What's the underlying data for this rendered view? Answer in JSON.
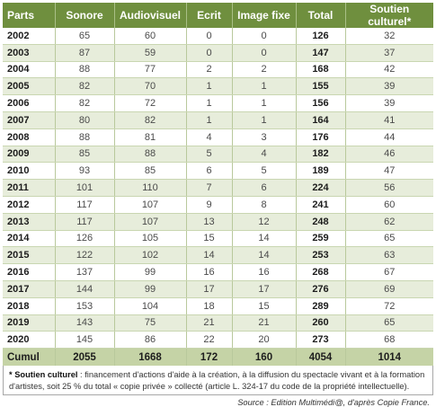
{
  "header": {
    "col_parts": "Parts",
    "col_sonore": "Sonore",
    "col_audiovisuel": "Audiovisuel",
    "col_ecrit": "Ecrit",
    "col_image": "Image fixe",
    "col_total": "Total",
    "col_soutien": "Soutien culturel*"
  },
  "rows": [
    {
      "year": "2002",
      "sonore": "65",
      "audiovisuel": "60",
      "ecrit": "0",
      "image": "0",
      "total": "126",
      "soutien": "32"
    },
    {
      "year": "2003",
      "sonore": "87",
      "audiovisuel": "59",
      "ecrit": "0",
      "image": "0",
      "total": "147",
      "soutien": "37"
    },
    {
      "year": "2004",
      "sonore": "88",
      "audiovisuel": "77",
      "ecrit": "2",
      "image": "2",
      "total": "168",
      "soutien": "42"
    },
    {
      "year": "2005",
      "sonore": "82",
      "audiovisuel": "70",
      "ecrit": "1",
      "image": "1",
      "total": "155",
      "soutien": "39"
    },
    {
      "year": "2006",
      "sonore": "82",
      "audiovisuel": "72",
      "ecrit": "1",
      "image": "1",
      "total": "156",
      "soutien": "39"
    },
    {
      "year": "2007",
      "sonore": "80",
      "audiovisuel": "82",
      "ecrit": "1",
      "image": "1",
      "total": "164",
      "soutien": "41"
    },
    {
      "year": "2008",
      "sonore": "88",
      "audiovisuel": "81",
      "ecrit": "4",
      "image": "3",
      "total": "176",
      "soutien": "44"
    },
    {
      "year": "2009",
      "sonore": "85",
      "audiovisuel": "88",
      "ecrit": "5",
      "image": "4",
      "total": "182",
      "soutien": "46"
    },
    {
      "year": "2010",
      "sonore": "93",
      "audiovisuel": "85",
      "ecrit": "6",
      "image": "5",
      "total": "189",
      "soutien": "47"
    },
    {
      "year": "2011",
      "sonore": "101",
      "audiovisuel": "110",
      "ecrit": "7",
      "image": "6",
      "total": "224",
      "soutien": "56"
    },
    {
      "year": "2012",
      "sonore": "117",
      "audiovisuel": "107",
      "ecrit": "9",
      "image": "8",
      "total": "241",
      "soutien": "60"
    },
    {
      "year": "2013",
      "sonore": "117",
      "audiovisuel": "107",
      "ecrit": "13",
      "image": "12",
      "total": "248",
      "soutien": "62"
    },
    {
      "year": "2014",
      "sonore": "126",
      "audiovisuel": "105",
      "ecrit": "15",
      "image": "14",
      "total": "259",
      "soutien": "65"
    },
    {
      "year": "2015",
      "sonore": "122",
      "audiovisuel": "102",
      "ecrit": "14",
      "image": "14",
      "total": "253",
      "soutien": "63"
    },
    {
      "year": "2016",
      "sonore": "137",
      "audiovisuel": "99",
      "ecrit": "16",
      "image": "16",
      "total": "268",
      "soutien": "67"
    },
    {
      "year": "2017",
      "sonore": "144",
      "audiovisuel": "99",
      "ecrit": "17",
      "image": "17",
      "total": "276",
      "soutien": "69"
    },
    {
      "year": "2018",
      "sonore": "153",
      "audiovisuel": "104",
      "ecrit": "18",
      "image": "15",
      "total": "289",
      "soutien": "72"
    },
    {
      "year": "2019",
      "sonore": "143",
      "audiovisuel": "75",
      "ecrit": "21",
      "image": "21",
      "total": "260",
      "soutien": "65"
    },
    {
      "year": "2020",
      "sonore": "145",
      "audiovisuel": "86",
      "ecrit": "22",
      "image": "20",
      "total": "273",
      "soutien": "68"
    }
  ],
  "cumul": {
    "label": "Cumul",
    "sonore": "2055",
    "audiovisuel": "1668",
    "ecrit": "172",
    "image": "160",
    "total": "4054",
    "soutien": "1014"
  },
  "note": {
    "term": "* Soutien culturel",
    "text": " : financement d'actions d'aide à la création, à la diffusion du spectacle vivant et à la formation d'artistes, soit 25 % du total « copie privée » collecté (article L. 324-17 du code de la propriété intellectuelle)."
  },
  "source": "Source : Edition Multimédi@, d'après Copie France."
}
